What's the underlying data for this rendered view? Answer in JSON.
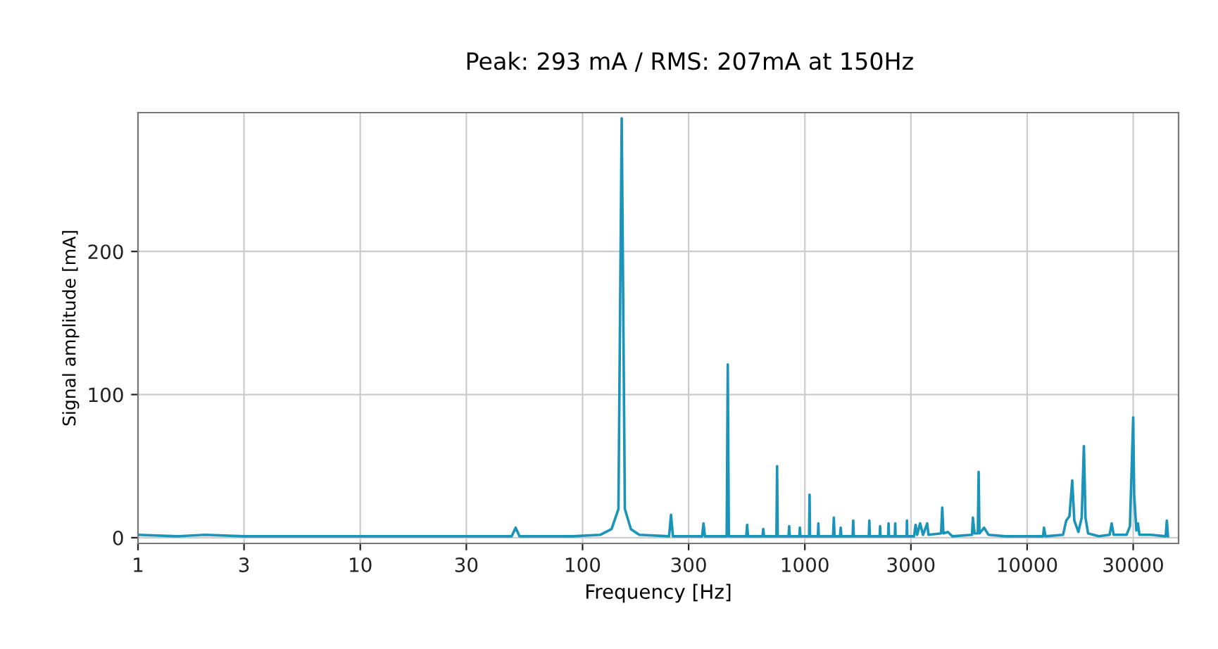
{
  "chart_data": {
    "type": "line",
    "title": "Peak: 293 mA / RMS: 207mA at 150Hz",
    "xlabel": "Frequency [Hz]",
    "ylabel": "Signal amplitude [mA]",
    "log": "x",
    "xlim": [
      1,
      48000
    ],
    "xticks": [
      1,
      3,
      10,
      30,
      100,
      300,
      1000,
      3000,
      10000,
      30000
    ],
    "ylim": [
      -4,
      297
    ],
    "yticks": [
      0,
      100,
      200
    ],
    "grid": true,
    "marker": "none",
    "line_style": "solid",
    "series": [
      {
        "color": "#1b94ba",
        "x": [
          1,
          1.5,
          2,
          3,
          5,
          10,
          20,
          30,
          48,
          50,
          52,
          90,
          120,
          135,
          145,
          150,
          155,
          165,
          180,
          245,
          250,
          255,
          345,
          350,
          355,
          445,
          450,
          455,
          545,
          550,
          555,
          645,
          650,
          655,
          745,
          750,
          755,
          845,
          850,
          855,
          945,
          950,
          955,
          1045,
          1050,
          1055,
          1145,
          1150,
          1155,
          1340,
          1350,
          1360,
          1440,
          1450,
          1460,
          1640,
          1650,
          1660,
          1940,
          1950,
          1960,
          2170,
          2180,
          2190,
          2370,
          2380,
          2390,
          2540,
          2550,
          2560,
          2870,
          2880,
          2890,
          3100,
          3150,
          3200,
          3300,
          3400,
          3550,
          3600,
          4100,
          4150,
          4200,
          4400,
          4600,
          5650,
          5700,
          5800,
          6000,
          6050,
          6100,
          6400,
          6700,
          8000,
          11800,
          11900,
          12100,
          14500,
          15000,
          15500,
          15950,
          16300,
          17000,
          17600,
          18000,
          18300,
          18800,
          21000,
          23500,
          24000,
          24500,
          28000,
          29000,
          30000,
          30300,
          31000,
          31500,
          32000,
          36000,
          42000,
          42500,
          43000
        ],
        "values": [
          2,
          1,
          2,
          1,
          1,
          1,
          1,
          1,
          1,
          7,
          1,
          1,
          2,
          6,
          20,
          293,
          20,
          6,
          2,
          1,
          16,
          1,
          1,
          10,
          1,
          1,
          121,
          1,
          1,
          9,
          1,
          1,
          6,
          1,
          1,
          50,
          1,
          1,
          8,
          1,
          1,
          7,
          1,
          1,
          30,
          1,
          1,
          10,
          1,
          1,
          14,
          1,
          1,
          7,
          1,
          1,
          12,
          1,
          1,
          12,
          1,
          1,
          8,
          1,
          1,
          10,
          1,
          1,
          10,
          1,
          1,
          12,
          1,
          1,
          9,
          2,
          10,
          2,
          10,
          2,
          3,
          21,
          3,
          4,
          1,
          2,
          14,
          3,
          3,
          46,
          3,
          7,
          2,
          1,
          1,
          7,
          1,
          2,
          12,
          15,
          40,
          12,
          4,
          14,
          64,
          14,
          3,
          1,
          2,
          10,
          2,
          2,
          8,
          84,
          30,
          5,
          10,
          2,
          2,
          1,
          12,
          1
        ]
      }
    ]
  }
}
